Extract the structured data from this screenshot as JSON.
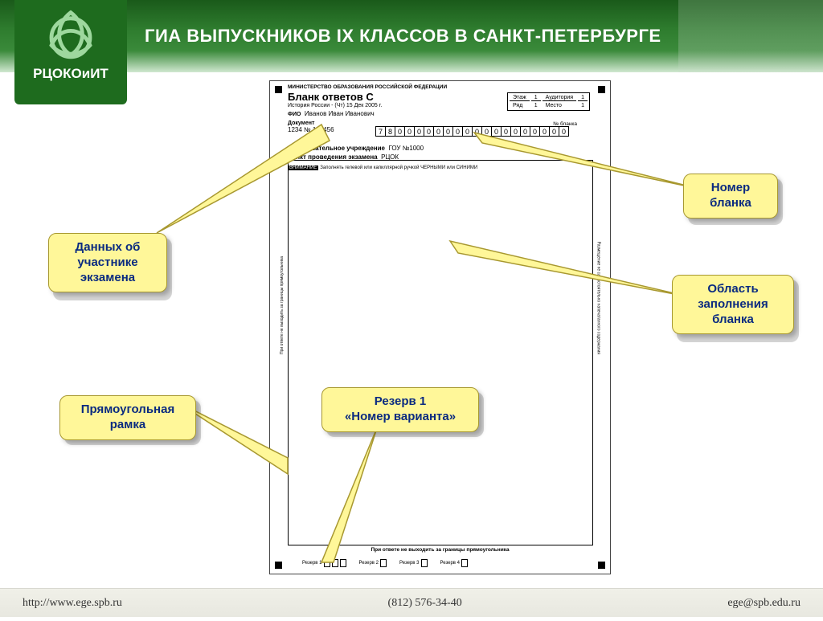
{
  "header": {
    "title": "ГИА ВЫПУСКНИКОВ IX КЛАССОВ В САНКТ-ПЕТЕРБУРГЕ",
    "logo_text": "РЦОКОиИТ",
    "logo_color": "#1e6b1e",
    "bar_gradient": [
      "#1a5a1a",
      "#3a8a3a"
    ]
  },
  "sheet": {
    "ministry": "МИНИСТЕРСТВО ОБРАЗОВАНИЯ РОССИЙСКОЙ ФЕДЕРАЦИИ",
    "title": "Бланк  ответов  С",
    "subject": "История России - (Чт) 15 Дек 2005 г.",
    "loc": {
      "etaj_label": "Этаж",
      "etaj": "1",
      "aud_label": "Аудитория",
      "aud": "1",
      "ryad_label": "Ряд",
      "ryad": "1",
      "mesto_label": "Место",
      "mesto": "1"
    },
    "fio_label": "ФИО",
    "fio": "Иванов Иван Иванович",
    "doc_label": "Документ",
    "doc": "1234 № 123456",
    "nblank_label": "№ бланка",
    "barcode": [
      "7",
      "8",
      "0",
      "0",
      "0",
      "0",
      "0",
      "0",
      "0",
      "0",
      "0",
      "0",
      "0",
      "0",
      "0",
      "0",
      "0",
      "0",
      "0",
      "0"
    ],
    "inst_label": "Образовательное учреждение",
    "inst": "ГОУ №1000",
    "punkt_label": "Пункт проведения экзамена",
    "punkt": "РЦОК",
    "attn": "ВНИМАНИЕ",
    "attn_text": "Заполнять гелевой или капиллярной ручкой ЧЕРНЫМИ или СИНИМИ",
    "side_left": "При ответе не выходить за границы прямоугольника",
    "side_right": "Размещение не самостоятельно напечатанного содержания",
    "bottom_note": "При ответе не выходить за границы прямоугольника",
    "reserves": [
      "Резерв 1",
      "Резерв 2",
      "Резерв 3",
      "Резерв 4"
    ]
  },
  "callouts": {
    "c1": "Данных об\nучастнике\nэкзамена",
    "c2": "Прямоугольная\nрамка",
    "c3": "Резерв 1\n«Номер варианта»",
    "c4": "Номер\nбланка",
    "c5": "Область\nзаполнения\nбланка"
  },
  "callout_style": {
    "bg": "#fff799",
    "border": "#a89830",
    "text": "#0a2a80",
    "fontsize": 15,
    "radius": 10
  },
  "footer": {
    "url": "http://www.ege.spb.ru",
    "phone": "(812) 576-34-40",
    "email": "ege@spb.edu.ru"
  }
}
